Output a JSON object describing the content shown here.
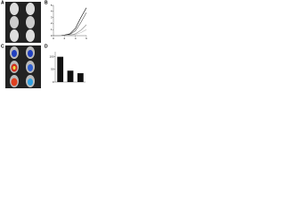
{
  "panels": [
    "A",
    "B",
    "C",
    "D"
  ],
  "chart_data": [
    {
      "type": "line",
      "x": [
        0,
        1,
        2,
        3,
        4,
        5,
        6
      ],
      "xlim": [
        0,
        6
      ],
      "xticks": [
        0,
        2,
        4,
        6
      ],
      "ylim": [
        0,
        5
      ],
      "yticks": [
        0,
        1,
        2,
        3,
        4,
        5
      ],
      "series": [
        {
          "color": "#000000",
          "values": [
            0,
            0,
            0.1,
            0.3,
            1.2,
            3.0,
            4.6
          ]
        },
        {
          "color": "#555555",
          "values": [
            0,
            0,
            0.1,
            0.2,
            0.8,
            2.2,
            3.8
          ]
        },
        {
          "color": "#888888",
          "values": [
            0,
            0,
            0,
            0.1,
            0.3,
            0.9,
            1.8
          ]
        },
        {
          "color": "#bbbbbb",
          "values": [
            0,
            0,
            0,
            0.1,
            0.2,
            0.5,
            1.0
          ]
        }
      ]
    },
    {
      "type": "bar",
      "categories": [
        null,
        null,
        null
      ],
      "values": [
        100,
        45,
        35
      ],
      "color": "#111111",
      "ylim": [
        0,
        120
      ],
      "yticks": [
        0,
        50,
        100
      ]
    }
  ]
}
